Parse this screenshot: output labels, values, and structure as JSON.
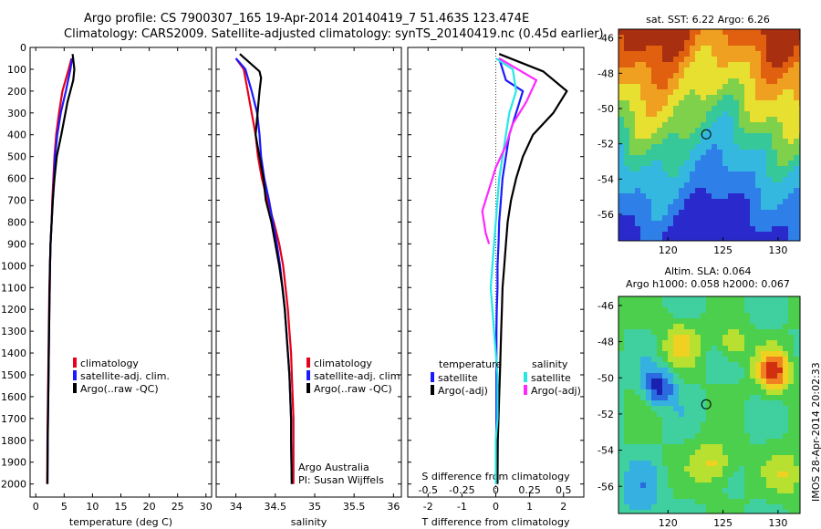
{
  "header": {
    "line1": "Argo profile: CS 7900307_165 19-Apr-2014 20140419_7 51.463S 123.474E",
    "line2": "Climatology: CARS2009. Satellite-adjusted climatology: synTS_20140419.nc (0.45d earlier)"
  },
  "colors": {
    "climatology": "#e8001c",
    "satellite": "#1a1aff",
    "argo": "#000000",
    "satellite_s": "#28e6e6",
    "argo_s": "#ff28ff"
  },
  "chart_data": [
    {
      "type": "line",
      "id": "temperature",
      "xlabel": "temperature (deg C)",
      "ylabel": "",
      "xlim": [
        -1,
        31
      ],
      "ylim": [
        2060,
        0
      ],
      "xticks": [
        "0",
        "5",
        "10",
        "15",
        "20",
        "25",
        "30"
      ],
      "xtick_values": [
        0,
        5,
        10,
        15,
        20,
        25,
        30
      ],
      "yticks": [
        "0",
        "100",
        "200",
        "300",
        "400",
        "500",
        "600",
        "700",
        "800",
        "900",
        "1000",
        "1100",
        "1200",
        "1300",
        "1400",
        "1500",
        "1600",
        "1700",
        "1800",
        "1900",
        "2000"
      ],
      "legend": [
        "climatology",
        "satellite-adj. clim.",
        "Argo(..raw -QC)"
      ],
      "series": [
        {
          "name": "climatology",
          "color": "#e8001c",
          "x": [
            6.3,
            5.8,
            4.7,
            4.1,
            3.6,
            3.3,
            3.1,
            2.9,
            2.8,
            2.6,
            2.5,
            2.4,
            2.35,
            2.3,
            2.25,
            2.2,
            2.15,
            2.1,
            2.05,
            2.0
          ],
          "y": [
            50,
            100,
            200,
            300,
            400,
            500,
            600,
            700,
            800,
            900,
            1000,
            1100,
            1200,
            1300,
            1400,
            1500,
            1600,
            1700,
            1800,
            2000
          ]
        },
        {
          "name": "satellite-adj. clim.",
          "color": "#1a1aff",
          "x": [
            6.4,
            6.1,
            5.3,
            4.4,
            3.8,
            3.4,
            3.2,
            3.0,
            2.8,
            2.6,
            2.5,
            2.45,
            2.4,
            2.35,
            2.3,
            2.25,
            2.2,
            2.15,
            2.1,
            2.05
          ],
          "y": [
            50,
            100,
            200,
            300,
            400,
            500,
            600,
            700,
            800,
            900,
            1000,
            1100,
            1200,
            1300,
            1400,
            1500,
            1600,
            1700,
            1800,
            2000
          ]
        },
        {
          "name": "Argo(..raw -QC)",
          "color": "#000000",
          "x": [
            6.5,
            6.8,
            6.6,
            5.6,
            4.5,
            3.7,
            3.3,
            3.0,
            2.8,
            2.6,
            2.5,
            2.45,
            2.4,
            2.35,
            2.3,
            2.25,
            2.2,
            2.15,
            2.1,
            2.05
          ],
          "y": [
            30,
            100,
            150,
            250,
            400,
            500,
            600,
            700,
            800,
            900,
            1000,
            1100,
            1200,
            1300,
            1400,
            1500,
            1600,
            1700,
            1800,
            2000
          ]
        }
      ]
    },
    {
      "type": "line",
      "id": "salinity",
      "xlabel": "salinity",
      "ylabel": "",
      "xlim": [
        33.75,
        36.1
      ],
      "ylim": [
        2060,
        0
      ],
      "xticks": [
        "34",
        "34.5",
        "35",
        "35.5",
        "36"
      ],
      "xtick_values": [
        34,
        34.5,
        35,
        35.5,
        36
      ],
      "legend": [
        "climatology",
        "satellite-adj. clim.",
        "Argo(..raw -QC)"
      ],
      "annotation": [
        "Argo Australia",
        "PI: Susan Wijffels"
      ],
      "series": [
        {
          "name": "climatology",
          "color": "#e8001c",
          "x": [
            34.0,
            34.1,
            34.15,
            34.2,
            34.25,
            34.28,
            34.33,
            34.4,
            34.48,
            34.55,
            34.6,
            34.63,
            34.66,
            34.68,
            34.7,
            34.71,
            34.72,
            34.73,
            34.73,
            34.73
          ],
          "y": [
            50,
            100,
            200,
            300,
            400,
            500,
            600,
            700,
            800,
            900,
            1000,
            1100,
            1200,
            1300,
            1400,
            1500,
            1600,
            1700,
            1800,
            2000
          ]
        },
        {
          "name": "satellite-adj. clim.",
          "color": "#1a1aff",
          "x": [
            34.0,
            34.12,
            34.2,
            34.27,
            34.3,
            34.32,
            34.36,
            34.42,
            34.47,
            34.52,
            34.56,
            34.59,
            34.62,
            34.64,
            34.66,
            34.68,
            34.69,
            34.7,
            34.7,
            34.71
          ],
          "y": [
            50,
            100,
            200,
            300,
            400,
            500,
            600,
            700,
            800,
            900,
            1000,
            1100,
            1200,
            1300,
            1400,
            1500,
            1600,
            1700,
            1800,
            2000
          ]
        },
        {
          "name": "Argo(..raw -QC)",
          "color": "#000000",
          "x": [
            34.05,
            34.3,
            34.32,
            34.3,
            34.25,
            34.3,
            34.35,
            34.38,
            34.45,
            34.5,
            34.55,
            34.59,
            34.62,
            34.64,
            34.66,
            34.68,
            34.69,
            34.7,
            34.7,
            34.71
          ],
          "y": [
            30,
            110,
            140,
            200,
            400,
            500,
            600,
            700,
            800,
            900,
            1000,
            1100,
            1200,
            1300,
            1400,
            1500,
            1600,
            1700,
            1800,
            2000
          ]
        }
      ]
    },
    {
      "type": "line",
      "id": "difference",
      "xlabel": "T difference from climatology",
      "xlabel_top": "S difference from climatology",
      "ylabel": "",
      "xlim": [
        -2.6,
        2.6
      ],
      "ylim": [
        2060,
        0
      ],
      "xticks": [
        "-2",
        "-1",
        "0",
        "1",
        "2"
      ],
      "xtick_values": [
        -2,
        -1,
        0,
        1,
        2
      ],
      "xticks_s": [
        "-0.5",
        "-0.25",
        "0",
        "0.25",
        "0.5"
      ],
      "xtick_values_s": [
        -0.5,
        -0.25,
        0,
        0.25,
        0.5
      ],
      "legend_headers": [
        "temperature",
        "salinity"
      ],
      "legend": [
        "satellite",
        "Argo(-adj)",
        "satellite",
        "Argo(-adj)"
      ],
      "series": [
        {
          "name": "satellite",
          "color": "#1a1aff",
          "x": [
            0.1,
            0.3,
            0.8,
            0.6,
            0.4,
            0.3,
            0.2,
            0.15,
            0.1,
            0.08,
            0.05,
            0.05,
            0.03,
            0.02,
            0.02,
            0.02,
            0.02,
            0.02,
            0.01,
            0.01
          ],
          "y": [
            50,
            150,
            200,
            300,
            400,
            500,
            600,
            700,
            800,
            900,
            1000,
            1100,
            1200,
            1300,
            1400,
            1500,
            1600,
            1700,
            1800,
            2000
          ]
        },
        {
          "name": "Argo(-adj)",
          "color": "#000000",
          "x": [
            0.1,
            1.4,
            2.1,
            1.7,
            1.1,
            0.8,
            0.6,
            0.45,
            0.35,
            0.3,
            0.25,
            0.2,
            0.18,
            0.16,
            0.14,
            0.12,
            0.1,
            0.08,
            0.06,
            0.05
          ],
          "y": [
            30,
            110,
            200,
            300,
            400,
            500,
            600,
            700,
            800,
            900,
            1000,
            1100,
            1200,
            1300,
            1400,
            1500,
            1600,
            1700,
            1800,
            2000
          ]
        },
        {
          "name": "satellite",
          "color": "#28e6e6",
          "x": [
            0.0,
            0.5,
            0.6,
            0.4,
            0.3,
            0.2,
            0.1,
            0.05,
            0.0,
            -0.05,
            -0.1,
            -0.15,
            -0.1,
            -0.05,
            0.0,
            0.05,
            0.05,
            0.05,
            0.0,
            0.0
          ],
          "y": [
            50,
            100,
            200,
            300,
            400,
            500,
            600,
            700,
            800,
            900,
            1000,
            1100,
            1200,
            1300,
            1400,
            1500,
            1600,
            1700,
            1800,
            2000
          ]
        },
        {
          "name": "Argo(-adj)",
          "color": "#ff28ff",
          "x": [
            0.1,
            1.2,
            0.9,
            0.5,
            0.3,
            0.0,
            -0.2,
            -0.4,
            -0.3,
            -0.2,
            null
          ],
          "y": [
            50,
            150,
            250,
            350,
            450,
            550,
            650,
            750,
            850,
            900,
            null
          ]
        }
      ]
    }
  ],
  "sst_map": {
    "title": "sat. SST: 6.22 Argo: 6.26",
    "lat_ticks": [
      "-46",
      "-48",
      "-50",
      "-52",
      "-54",
      "-56"
    ],
    "lat_values": [
      -46,
      -48,
      -50,
      -52,
      -54,
      -56
    ],
    "lon_ticks": [
      "120",
      "125",
      "130"
    ],
    "lon_values": [
      120,
      125,
      130
    ]
  },
  "sla_map": {
    "title1": "Altim. SLA: 0.064",
    "title2": "Argo h1000: 0.058 h2000: 0.067",
    "lat_ticks": [
      "-46",
      "-48",
      "-50",
      "-52",
      "-54",
      "-56"
    ],
    "lat_values": [
      -46,
      -48,
      -50,
      -52,
      -54,
      -56
    ],
    "lon_ticks": [
      "120",
      "125",
      "130"
    ],
    "lon_values": [
      120,
      125,
      130
    ]
  },
  "float_position": {
    "lon": 123.474,
    "lat": -51.463
  },
  "footer": "IMOS 28-Apr-2014 20:02:33"
}
